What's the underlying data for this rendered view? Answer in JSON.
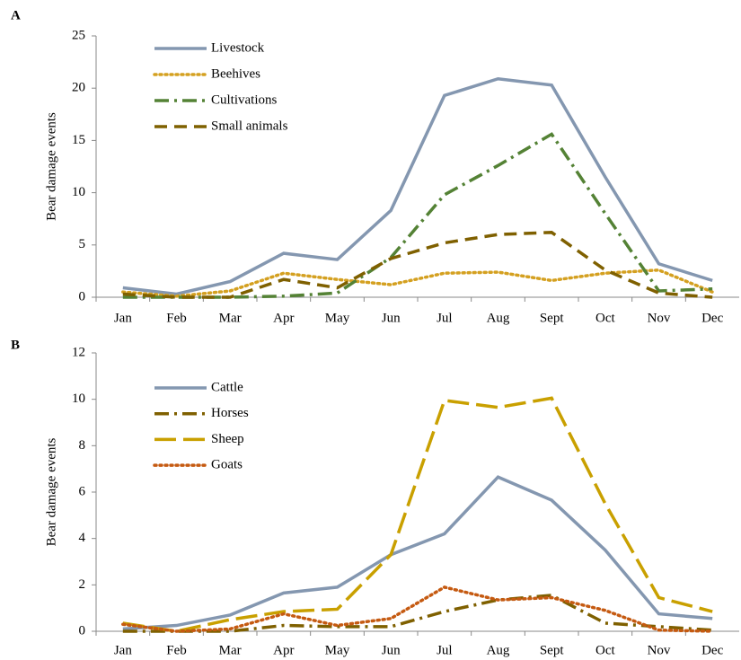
{
  "chart_data": [
    {
      "type": "line",
      "label": "A",
      "y_label": "Bear damage events",
      "categories": [
        "Jan",
        "Feb",
        "Mar",
        "Apr",
        "May",
        "Jun",
        "Jul",
        "Aug",
        "Sept",
        "Oct",
        "Nov",
        "Dec"
      ],
      "ylim": [
        0,
        25
      ],
      "yticks": [
        0,
        5,
        10,
        15,
        20,
        25
      ],
      "series": [
        {
          "name": "Livestock",
          "color": "#8497b0",
          "dash": "solid",
          "values": [
            0.9,
            0.3,
            1.5,
            4.2,
            3.6,
            8.3,
            19.3,
            20.9,
            20.3,
            11.5,
            3.2,
            1.6
          ]
        },
        {
          "name": "Beehives",
          "color": "#d4a020",
          "dash": "dotted",
          "values": [
            0.5,
            0.1,
            0.6,
            2.3,
            1.7,
            1.2,
            2.3,
            2.4,
            1.6,
            2.3,
            2.6,
            0.5
          ]
        },
        {
          "name": "Cultivations",
          "color": "#548235",
          "dash": "dashdot",
          "values": [
            0,
            0,
            0,
            0.1,
            0.4,
            3.8,
            9.8,
            12.6,
            15.6,
            8.0,
            0.6,
            0.8
          ]
        },
        {
          "name": "Small animals",
          "color": "#7f6000",
          "dash": "dashed",
          "values": [
            0.3,
            0,
            0,
            1.7,
            0.9,
            3.7,
            5.2,
            6.0,
            6.2,
            2.6,
            0.4,
            0
          ]
        }
      ]
    },
    {
      "type": "line",
      "label": "B",
      "y_label": "Bear damage events",
      "categories": [
        "Jan",
        "Feb",
        "Mar",
        "Apr",
        "May",
        "Jun",
        "Jul",
        "Aug",
        "Sept",
        "Oct",
        "Nov",
        "Dec"
      ],
      "ylim": [
        0,
        12
      ],
      "yticks": [
        0,
        2,
        4,
        6,
        8,
        10,
        12
      ],
      "series": [
        {
          "name": "Cattle",
          "color": "#8497b0",
          "dash": "solid",
          "values": [
            0.1,
            0.25,
            0.7,
            1.65,
            1.9,
            3.3,
            4.2,
            6.65,
            5.65,
            3.5,
            0.75,
            0.55
          ]
        },
        {
          "name": "Horses",
          "color": "#7f6000",
          "dash": "dashdot",
          "values": [
            0,
            0,
            0,
            0.25,
            0.2,
            0.2,
            0.85,
            1.35,
            1.55,
            0.35,
            0.2,
            0.05
          ]
        },
        {
          "name": "Sheep",
          "color": "#c9a000",
          "dash": "longdash",
          "values": [
            0.35,
            0,
            0.5,
            0.85,
            0.95,
            3.3,
            9.95,
            9.65,
            10.05,
            5.5,
            1.45,
            0.85
          ]
        },
        {
          "name": "Goats",
          "color": "#c55a11",
          "dash": "dotted",
          "values": [
            0.3,
            0,
            0.1,
            0.75,
            0.25,
            0.55,
            1.9,
            1.35,
            1.45,
            0.9,
            0.05,
            0
          ]
        }
      ]
    }
  ]
}
